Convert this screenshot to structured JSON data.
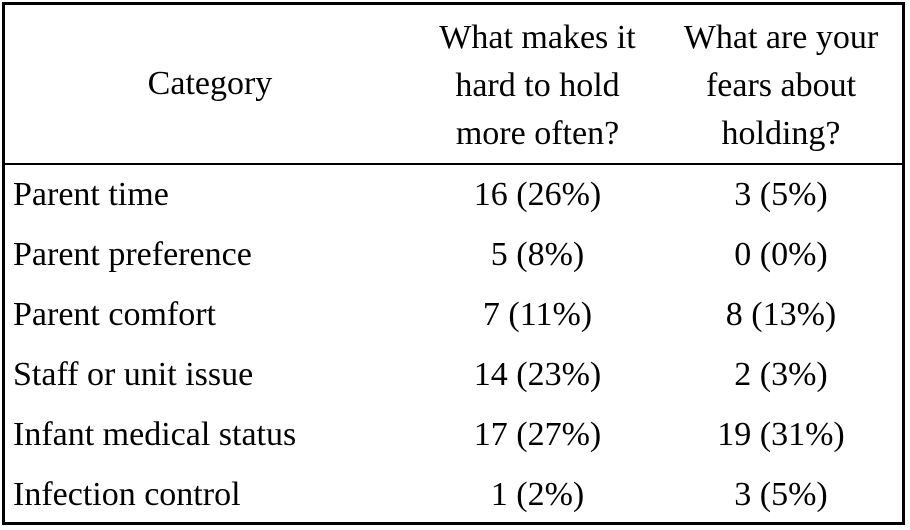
{
  "table": {
    "headers": {
      "category": "Category",
      "q1_lines": [
        "What makes it",
        "hard to hold",
        "more often?"
      ],
      "q2_lines": [
        "What are your",
        "fears about",
        "holding?"
      ]
    },
    "rows": [
      {
        "category": "Parent time",
        "q1": "16 (26%)",
        "q2": "3 (5%)"
      },
      {
        "category": "Parent preference",
        "q1": "5 (8%)",
        "q2": "0 (0%)"
      },
      {
        "category": "Parent comfort",
        "q1": "7 (11%)",
        "q2": "8 (13%)"
      },
      {
        "category": "Staff or unit issue",
        "q1": "14 (23%)",
        "q2": "2 (3%)"
      },
      {
        "category": "Infant medical status",
        "q1": "17 (27%)",
        "q2": "19 (31%)"
      },
      {
        "category": "Infection control",
        "q1": "1 (2%)",
        "q2": "3 (5%)"
      }
    ]
  }
}
